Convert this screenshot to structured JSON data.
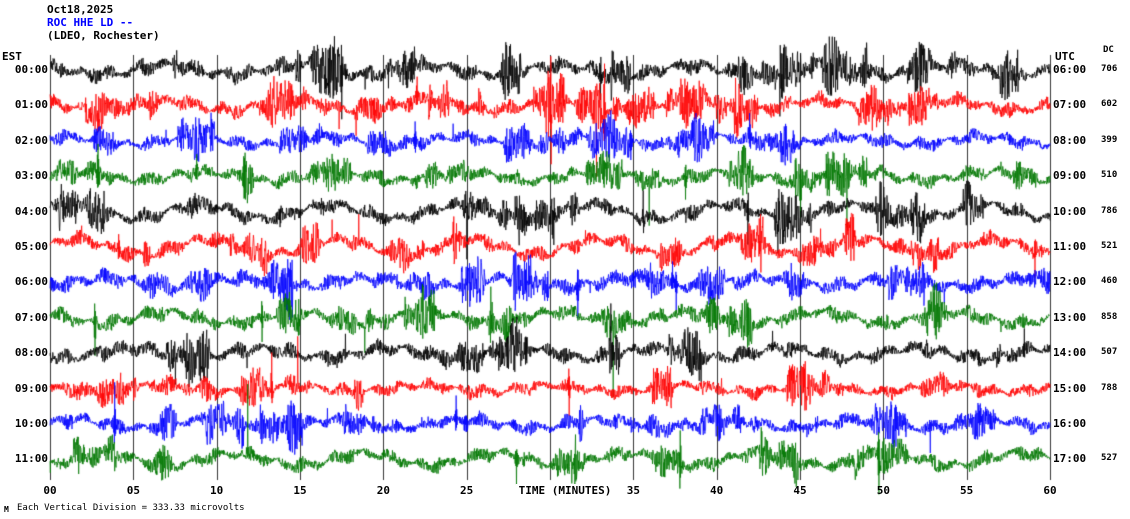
{
  "header": {
    "date": "Oct18,2025",
    "station_line": "ROC HHE LD --",
    "affiliation_line": "(LDEO, Rochester)"
  },
  "axis": {
    "left_timezone": "EST",
    "right_timezone": "UTC",
    "dc_column_label": "DC",
    "x_axis_title": "TIME (MINUTES)",
    "x_tick_labels": [
      "00",
      "05",
      "10",
      "15",
      "20",
      "25",
      "30",
      "35",
      "40",
      "45",
      "50",
      "55",
      "60"
    ]
  },
  "footer": {
    "corner_mark": "M",
    "scale_note": "Each Vertical Division = 333.33 microvolts"
  },
  "colors": {
    "trace_black": "#000000",
    "trace_red": "#ff0000",
    "trace_blue": "#0000ff",
    "trace_green": "#007700",
    "station_text": "#0000ff",
    "grid": "#000000",
    "background": "#ffffff"
  },
  "chart_data": {
    "type": "line",
    "title": "ROC HHE LD -- (LDEO, Rochester) helicorder, Oct18,2025",
    "description": "12-row helicorder seismogram; each row is one hour (60 minutes) of continuous seismic waveform noise. Individual sample values are not labeled in the source image; traces are stochastic ground-motion noise with intermittent bursts and spikes.",
    "x_axis": {
      "label": "TIME (MINUTES)",
      "range": [
        0,
        60
      ],
      "tick_interval_minutes": 5,
      "grid": true
    },
    "vertical_division_microvolts": 333.33,
    "rows": [
      {
        "est": "00:00",
        "utc": "06:00",
        "dc": "706",
        "color": "#000000"
      },
      {
        "est": "01:00",
        "utc": "07:00",
        "dc": "602",
        "color": "#ff0000"
      },
      {
        "est": "02:00",
        "utc": "08:00",
        "dc": "399",
        "color": "#0000ff"
      },
      {
        "est": "03:00",
        "utc": "09:00",
        "dc": "510",
        "color": "#007700"
      },
      {
        "est": "04:00",
        "utc": "10:00",
        "dc": "786",
        "color": "#000000"
      },
      {
        "est": "05:00",
        "utc": "11:00",
        "dc": "521",
        "color": "#ff0000"
      },
      {
        "est": "06:00",
        "utc": "12:00",
        "dc": "460",
        "color": "#0000ff"
      },
      {
        "est": "07:00",
        "utc": "13:00",
        "dc": "858",
        "color": "#007700"
      },
      {
        "est": "08:00",
        "utc": "14:00",
        "dc": "507",
        "color": "#000000"
      },
      {
        "est": "09:00",
        "utc": "15:00",
        "dc": "788",
        "color": "#ff0000"
      },
      {
        "est": "10:00",
        "utc": "16:00",
        "dc": "",
        "color": "#0000ff"
      },
      {
        "est": "11:00",
        "utc": "17:00",
        "dc": "527",
        "color": "#007700"
      }
    ]
  }
}
